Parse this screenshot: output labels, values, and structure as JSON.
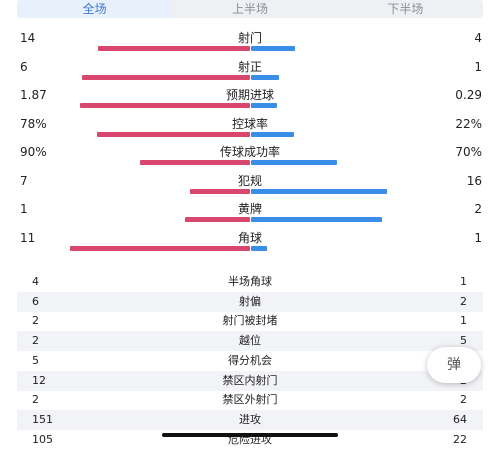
{
  "tabs": [
    {
      "label": "全场",
      "active": true
    },
    {
      "label": "上半场",
      "active": false
    },
    {
      "label": "下半场",
      "active": false
    }
  ],
  "bar_stats": [
    {
      "label": "射门",
      "home": "14",
      "away": "4",
      "home_share": 0.7778,
      "away_share": 0.2222
    },
    {
      "label": "射正",
      "home": "6",
      "away": "1",
      "home_share": 0.8571,
      "away_share": 0.1429
    },
    {
      "label": "预期进球",
      "home": "1.87",
      "away": "0.29",
      "home_share": 0.8657,
      "away_share": 0.1343
    },
    {
      "label": "控球率",
      "home": "78%",
      "away": "22%",
      "home_share": 0.78,
      "away_share": 0.22
    },
    {
      "label": "传球成功率",
      "home": "90%",
      "away": "70%",
      "home_share": 0.5625,
      "away_share": 0.4375
    },
    {
      "label": "犯规",
      "home": "7",
      "away": "16",
      "home_share": 0.3043,
      "away_share": 0.6957
    },
    {
      "label": "黄牌",
      "home": "1",
      "away": "2",
      "home_share": 0.3333,
      "away_share": 0.6667
    },
    {
      "label": "角球",
      "home": "11",
      "away": "1",
      "home_share": 0.9167,
      "away_share": 0.0833
    }
  ],
  "table_stats": [
    {
      "label": "半场角球",
      "home": "4",
      "away": "1"
    },
    {
      "label": "射偏",
      "home": "6",
      "away": "2"
    },
    {
      "label": "射门被封堵",
      "home": "2",
      "away": "1"
    },
    {
      "label": "越位",
      "home": "2",
      "away": "5"
    },
    {
      "label": "得分机会",
      "home": "5",
      "away": "2"
    },
    {
      "label": "禁区内射门",
      "home": "12",
      "away": "2"
    },
    {
      "label": "禁区外射门",
      "home": "2",
      "away": "2"
    },
    {
      "label": "进攻",
      "home": "151",
      "away": "64"
    },
    {
      "label": "危险进攻",
      "home": "105",
      "away": "22"
    }
  ],
  "floating_button": {
    "label": "弹"
  },
  "colors": {
    "home": "#d9466e",
    "away": "#3b8ee8",
    "accent": "#3a7bd5"
  }
}
